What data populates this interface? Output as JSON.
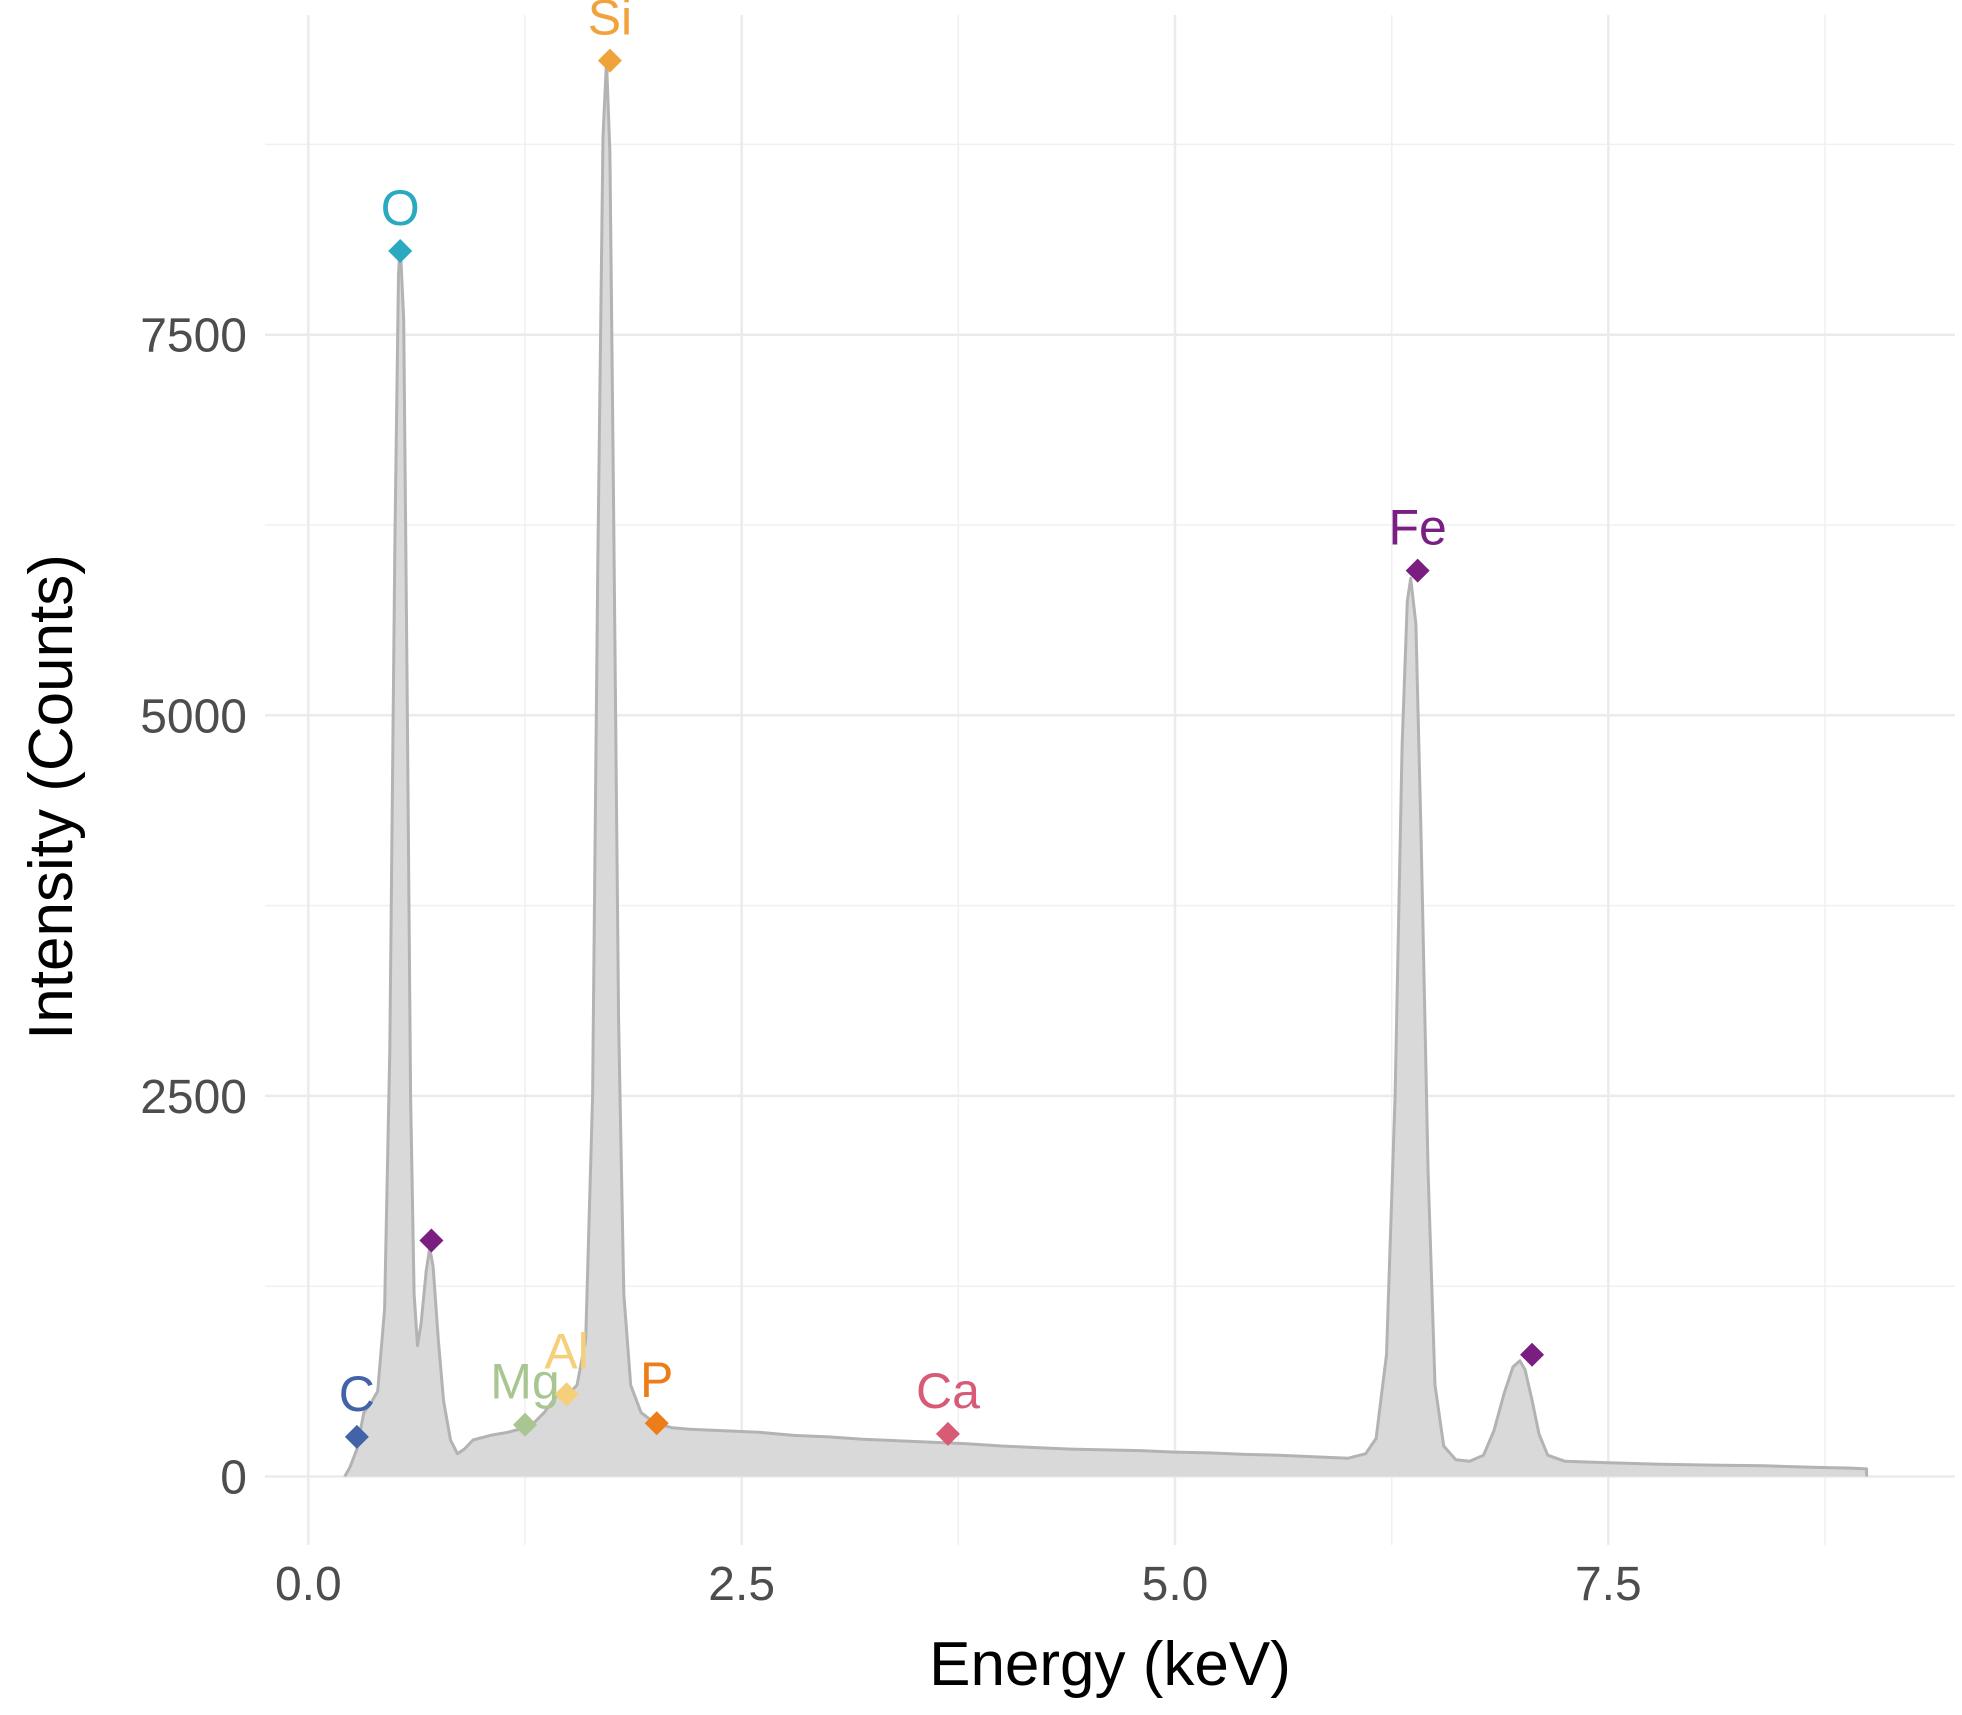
{
  "chart_data": {
    "type": "area",
    "title": "",
    "xlabel": "Energy (keV)",
    "ylabel": "Intensity (Counts)",
    "xlim": [
      -0.25,
      9.5
    ],
    "ylim": [
      -450,
      9600
    ],
    "x_ticks": [
      0.0,
      2.5,
      5.0,
      7.5
    ],
    "x_tick_labels": [
      "0.0",
      "2.5",
      "5.0",
      "7.5"
    ],
    "y_ticks": [
      0,
      2500,
      5000,
      7500
    ],
    "y_tick_labels": [
      "0",
      "2500",
      "5000",
      "7500"
    ],
    "grid": true,
    "series": [
      {
        "fill": "#d9d9d9",
        "stroke": "#b3b3b3",
        "points": [
          [
            0.21,
            0
          ],
          [
            0.24,
            60
          ],
          [
            0.28,
            180
          ],
          [
            0.32,
            420
          ],
          [
            0.36,
            480
          ],
          [
            0.4,
            560
          ],
          [
            0.44,
            1100
          ],
          [
            0.47,
            2800
          ],
          [
            0.5,
            6200
          ],
          [
            0.52,
            7900
          ],
          [
            0.53,
            8100
          ],
          [
            0.55,
            7600
          ],
          [
            0.57,
            5200
          ],
          [
            0.59,
            2500
          ],
          [
            0.61,
            1200
          ],
          [
            0.63,
            860
          ],
          [
            0.65,
            1000
          ],
          [
            0.68,
            1350
          ],
          [
            0.7,
            1500
          ],
          [
            0.72,
            1380
          ],
          [
            0.75,
            900
          ],
          [
            0.78,
            500
          ],
          [
            0.82,
            240
          ],
          [
            0.86,
            150
          ],
          [
            0.9,
            180
          ],
          [
            0.95,
            240
          ],
          [
            1.05,
            270
          ],
          [
            1.15,
            290
          ],
          [
            1.25,
            320
          ],
          [
            1.3,
            350
          ],
          [
            1.36,
            420
          ],
          [
            1.4,
            480
          ],
          [
            1.45,
            560
          ],
          [
            1.5,
            540
          ],
          [
            1.55,
            600
          ],
          [
            1.6,
            900
          ],
          [
            1.64,
            2500
          ],
          [
            1.67,
            6000
          ],
          [
            1.7,
            8800
          ],
          [
            1.72,
            9300
          ],
          [
            1.74,
            8700
          ],
          [
            1.76,
            6500
          ],
          [
            1.79,
            3000
          ],
          [
            1.82,
            1200
          ],
          [
            1.86,
            600
          ],
          [
            1.92,
            420
          ],
          [
            2.0,
            350
          ],
          [
            2.1,
            320
          ],
          [
            2.2,
            310
          ],
          [
            2.4,
            300
          ],
          [
            2.6,
            290
          ],
          [
            2.8,
            270
          ],
          [
            3.0,
            260
          ],
          [
            3.2,
            245
          ],
          [
            3.4,
            235
          ],
          [
            3.6,
            225
          ],
          [
            3.8,
            215
          ],
          [
            4.0,
            200
          ],
          [
            4.2,
            190
          ],
          [
            4.4,
            180
          ],
          [
            4.6,
            175
          ],
          [
            4.8,
            170
          ],
          [
            5.0,
            160
          ],
          [
            5.2,
            155
          ],
          [
            5.4,
            145
          ],
          [
            5.6,
            140
          ],
          [
            5.8,
            130
          ],
          [
            6.0,
            120
          ],
          [
            6.1,
            150
          ],
          [
            6.16,
            250
          ],
          [
            6.22,
            800
          ],
          [
            6.27,
            2500
          ],
          [
            6.31,
            4800
          ],
          [
            6.34,
            5750
          ],
          [
            6.36,
            5900
          ],
          [
            6.39,
            5600
          ],
          [
            6.42,
            4200
          ],
          [
            6.46,
            2000
          ],
          [
            6.5,
            600
          ],
          [
            6.55,
            200
          ],
          [
            6.62,
            110
          ],
          [
            6.7,
            100
          ],
          [
            6.78,
            140
          ],
          [
            6.84,
            300
          ],
          [
            6.9,
            550
          ],
          [
            6.95,
            720
          ],
          [
            6.99,
            760
          ],
          [
            7.02,
            700
          ],
          [
            7.06,
            500
          ],
          [
            7.1,
            280
          ],
          [
            7.15,
            140
          ],
          [
            7.25,
            100
          ],
          [
            7.5,
            90
          ],
          [
            7.8,
            80
          ],
          [
            8.1,
            75
          ],
          [
            8.4,
            70
          ],
          [
            8.7,
            60
          ],
          [
            8.9,
            55
          ],
          [
            8.99,
            50
          ],
          [
            8.99,
            0
          ]
        ]
      }
    ],
    "peaks": [
      {
        "element": "C",
        "x": 0.28,
        "y": 260,
        "color": "#4363a8",
        "label": "C"
      },
      {
        "element": "O",
        "x": 0.53,
        "y": 8050,
        "color": "#2aa9c1",
        "label": "O"
      },
      {
        "element": "Fe",
        "x": 0.71,
        "y": 1550,
        "color": "#7a1f81",
        "label": ""
      },
      {
        "element": "Mg",
        "x": 1.25,
        "y": 340,
        "color": "#a9c692",
        "label": "Mg"
      },
      {
        "element": "Al",
        "x": 1.49,
        "y": 540,
        "color": "#f5cf7a",
        "label": "Al"
      },
      {
        "element": "Si",
        "x": 1.74,
        "y": 9300,
        "color": "#f0a33b",
        "label": "Si"
      },
      {
        "element": "P",
        "x": 2.01,
        "y": 350,
        "color": "#ec7d18",
        "label": "P"
      },
      {
        "element": "Ca",
        "x": 3.69,
        "y": 280,
        "color": "#d85a77",
        "label": "Ca"
      },
      {
        "element": "Fe",
        "x": 6.4,
        "y": 5950,
        "color": "#7a1f81",
        "label": "Fe"
      },
      {
        "element": "Fe",
        "x": 7.06,
        "y": 800,
        "color": "#7a1f81",
        "label": ""
      }
    ]
  }
}
